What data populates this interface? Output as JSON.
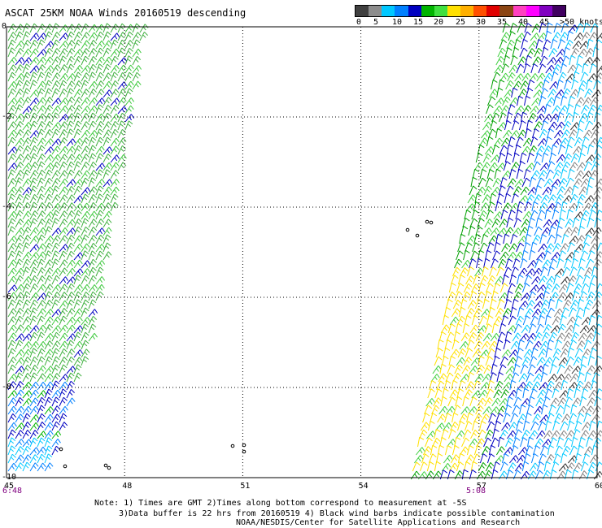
{
  "title": "ASCAT 25KM NOAA Winds 20160519 descending",
  "legend": {
    "labels": [
      "0",
      "5",
      "10",
      "15",
      "20",
      "25",
      "30",
      "35",
      "40",
      "45",
      ">50 knots"
    ],
    "colors": [
      "#404040",
      "#8c8c8c",
      "#00c8ff",
      "#0080ff",
      "#0000c0",
      "#00b400",
      "#40e040",
      "#ffe000",
      "#ffb000",
      "#ff5000",
      "#e00000",
      "#8b4513",
      "#ff40c0",
      "#ff00ff",
      "#8000c0",
      "#400060"
    ]
  },
  "axes": {
    "x_ticks": [
      "45",
      "48",
      "51",
      "54",
      "57",
      "60"
    ],
    "y_ticks": [
      "0",
      "-2",
      "-4",
      "-6",
      "-8",
      "-10"
    ]
  },
  "time_labels": {
    "left": "6:48",
    "right": "5:08"
  },
  "notes": {
    "line1": "Note: 1) Times are GMT 2)Times along bottom correspond to measurement at -5S",
    "line2": "3)Data buffer is 22 hrs from 20160519 4) Black wind barbs indicate possible contamination",
    "line3": "NOAA/NESDIS/Center for Satellite Applications and Research"
  },
  "swaths": {
    "left": {
      "description_color": "green"
    },
    "right": {
      "description_color": "mixed"
    }
  }
}
